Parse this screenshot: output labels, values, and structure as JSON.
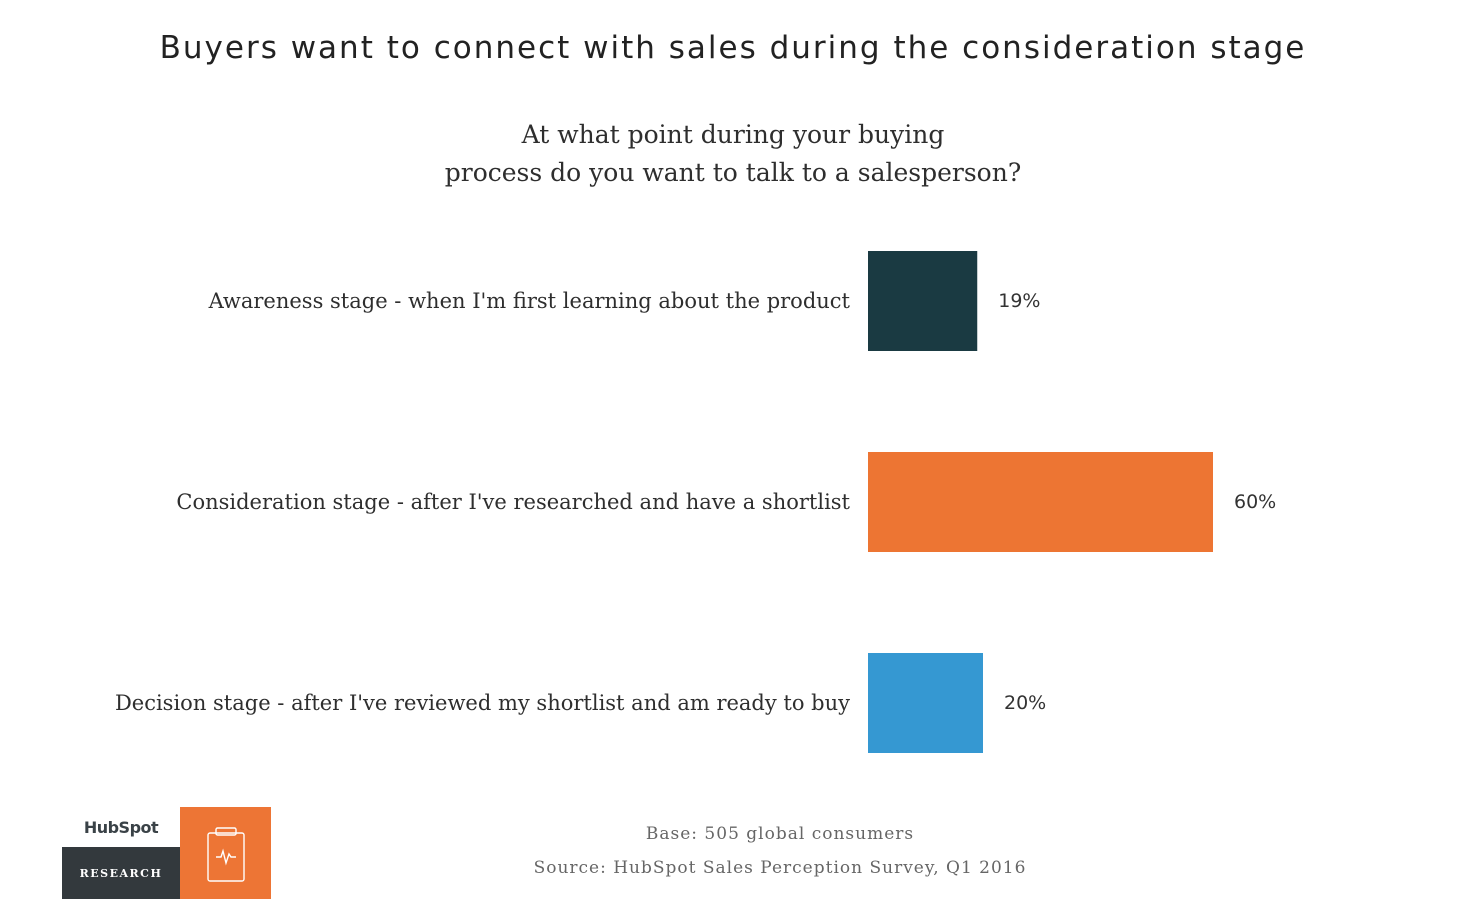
{
  "chart_data": {
    "type": "bar",
    "orientation": "horizontal",
    "title": "Buyers want to connect with sales during the consideration stage",
    "subtitle_lines": [
      "At what point during your buying",
      "process do you want to talk to a salesperson?"
    ],
    "categories": [
      "Awareness stage - when I'm first learning about the product",
      "Consideration stage - after I've researched and have a shortlist",
      "Decision stage - after I've reviewed my shortlist and am ready to buy"
    ],
    "values": [
      19,
      60,
      20
    ],
    "value_labels": [
      "19%",
      "60%",
      "20%"
    ],
    "bar_colors": [
      "#1a3a42",
      "#ed7533",
      "#3598d2"
    ],
    "grid": false,
    "xlim": [
      0,
      100
    ]
  },
  "footer": {
    "base": "Base: 505 global consumers",
    "source": "Source: HubSpot Sales Perception Survey, Q1 2016"
  },
  "logo": {
    "wordmark": "HubSpot",
    "badge_text": "RESEARCH",
    "badge_icon": "clipboard-pulse-icon",
    "accent": "#ed7535"
  }
}
